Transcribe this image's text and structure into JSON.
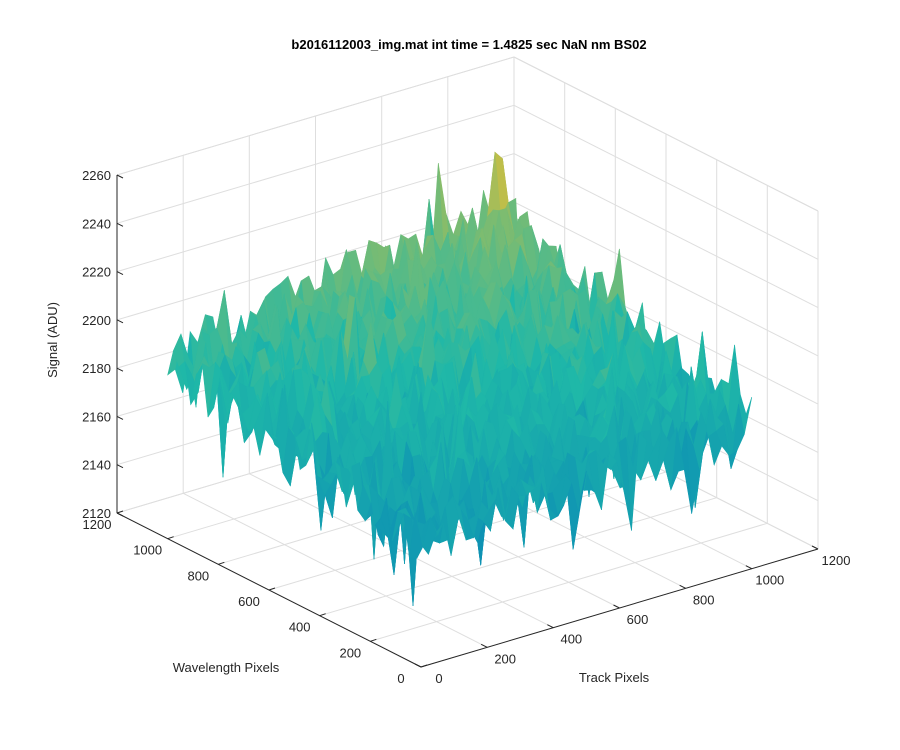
{
  "chart_data": {
    "type": "surface",
    "title": "b2016112003_img.mat int time = 1.4825 sec  NaN nm BS02",
    "xlabel": "Track Pixels",
    "ylabel": "Wavelength Pixels",
    "zlabel": "Signal (ADU)",
    "xlim": [
      0,
      1200
    ],
    "ylim": [
      0,
      1200
    ],
    "zlim": [
      2120,
      2260
    ],
    "x_ticks": [
      "0",
      "200",
      "400",
      "600",
      "800",
      "1000",
      "1200"
    ],
    "y_ticks": [
      "0",
      "200",
      "400",
      "600",
      "800",
      "1000",
      "1200"
    ],
    "z_ticks": [
      "2120",
      "2140",
      "2160",
      "2180",
      "2200",
      "2220",
      "2240",
      "2260"
    ],
    "grid": true,
    "colormap": "parula",
    "surface_extent": {
      "x": [
        0,
        1000
      ],
      "y": [
        0,
        1000
      ]
    },
    "surface_trend": {
      "corners": {
        "x0_y0": 2170,
        "x1000_y0": 2180,
        "x0_y1000": 2195,
        "x1000_y1000": 2215
      },
      "noise_range": 25
    },
    "colors": {
      "low": "#0072bd",
      "mid": "#1fb8a8",
      "high": "#f0c02c"
    }
  }
}
